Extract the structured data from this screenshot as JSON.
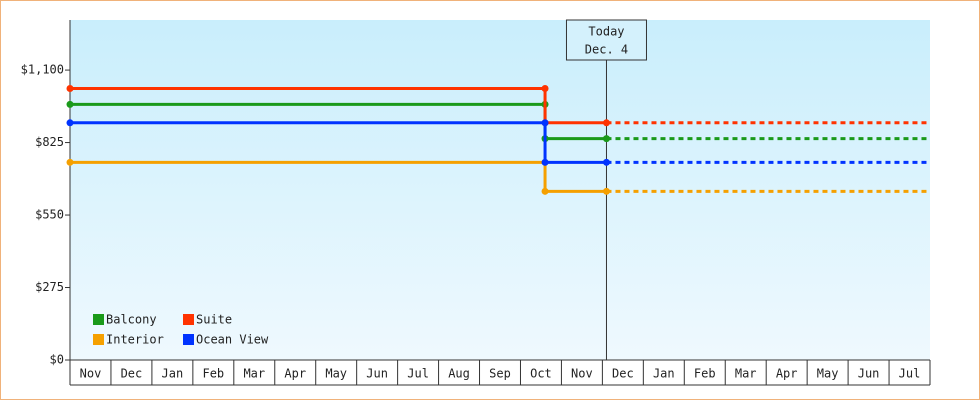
{
  "chart_data": {
    "type": "line",
    "step": true,
    "categories": [
      "Nov",
      "Dec",
      "Jan",
      "Feb",
      "Mar",
      "Apr",
      "May",
      "Jun",
      "Jul",
      "Aug",
      "Sep",
      "Oct",
      "Nov",
      "Dec",
      "Jan",
      "Feb",
      "Mar",
      "Apr",
      "May",
      "Jun",
      "Jul"
    ],
    "xlim": [
      0,
      21
    ],
    "ylim": [
      0,
      1290
    ],
    "yticks": [
      {
        "value": 0,
        "label": "$0"
      },
      {
        "value": 275,
        "label": "$275"
      },
      {
        "value": 550,
        "label": "$550"
      },
      {
        "value": 825,
        "label": "$825"
      },
      {
        "value": 1100,
        "label": "$1,100"
      }
    ],
    "series": [
      {
        "name": "Balcony",
        "color": "#1a9a1a",
        "x": [
          0,
          11.6,
          11.6,
          13.1
        ],
        "values": [
          970,
          970,
          840,
          840
        ]
      },
      {
        "name": "Suite",
        "color": "#ff3300",
        "x": [
          0,
          11.6,
          11.6,
          13.1
        ],
        "values": [
          1030,
          1030,
          900,
          900
        ]
      },
      {
        "name": "Interior",
        "color": "#f5a000",
        "x": [
          0,
          11.6,
          11.6,
          13.1
        ],
        "values": [
          750,
          750,
          640,
          640
        ]
      },
      {
        "name": "Ocean View",
        "color": "#0033ff",
        "x": [
          0,
          11.6,
          11.6,
          13.1
        ],
        "values": [
          900,
          900,
          750,
          750
        ]
      }
    ],
    "today": {
      "x": 13.1,
      "label": [
        "Today",
        "Dec. 4"
      ]
    },
    "legend": "lower-left"
  }
}
